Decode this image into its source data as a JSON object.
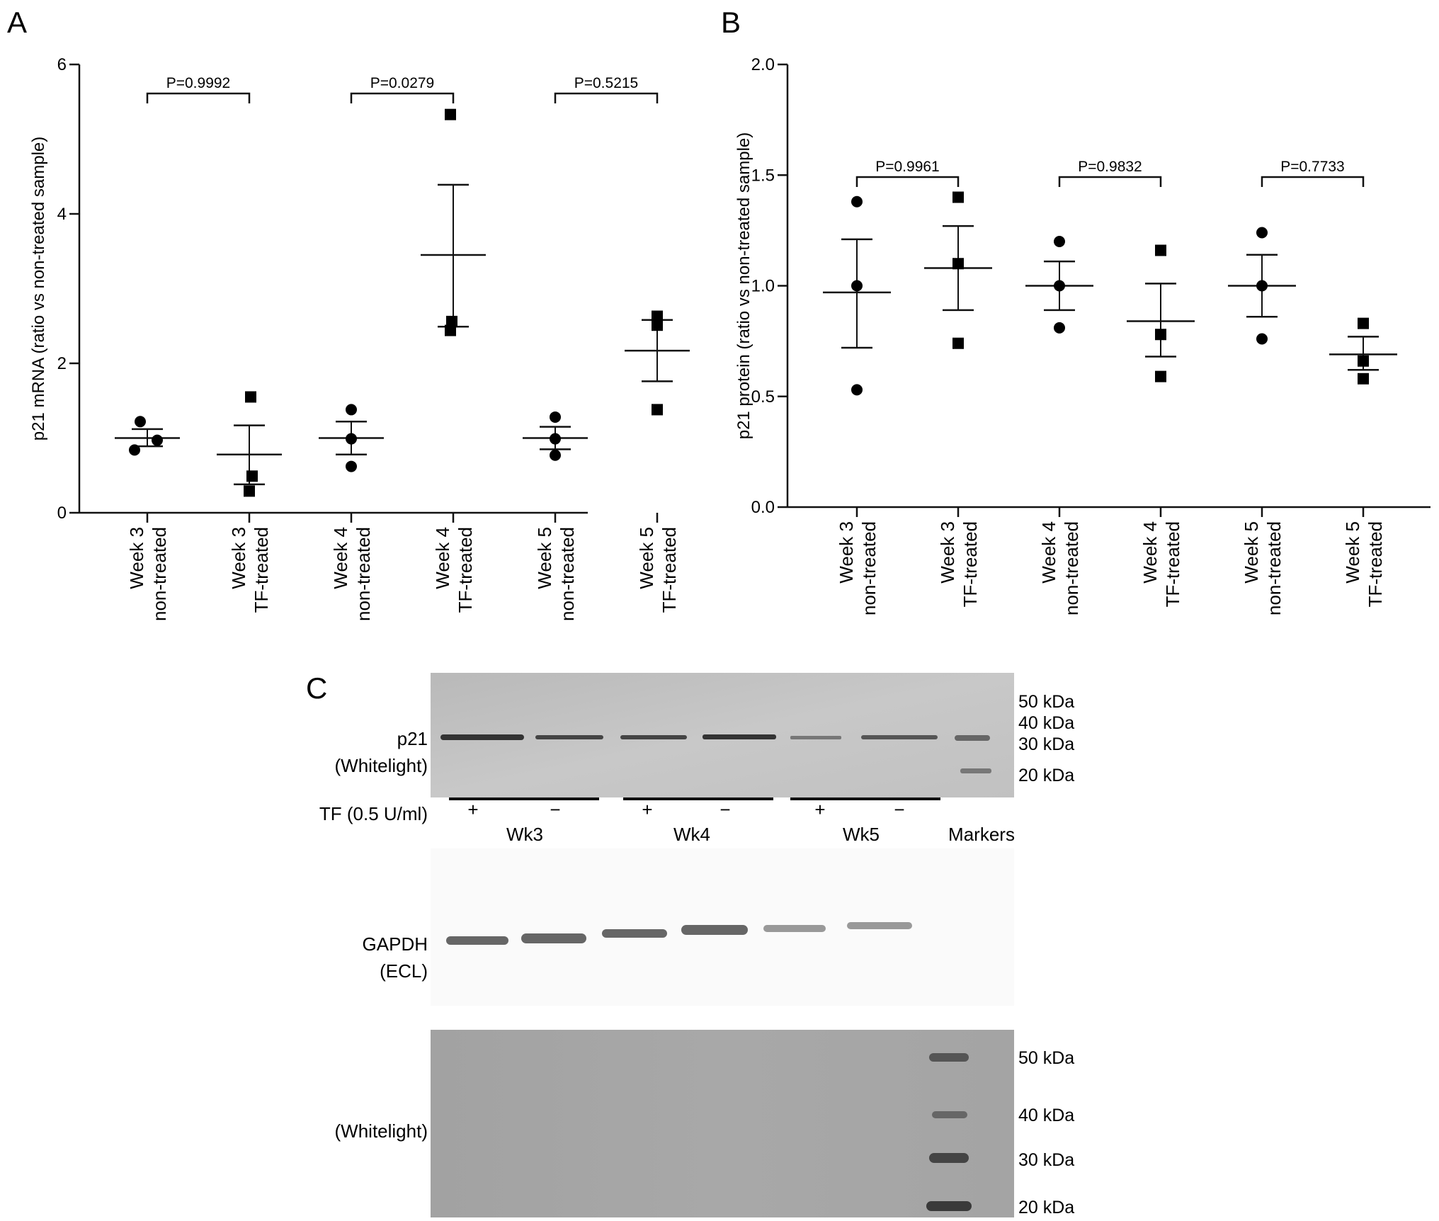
{
  "panels": {
    "a": "A",
    "b": "B",
    "c": "C"
  },
  "chart_data": [
    {
      "panel": "A",
      "type": "scatter",
      "ylabel": "p21 mRNA (ratio vs non-treated sample)",
      "ylim": [
        0,
        6
      ],
      "yticks": [
        "0",
        "2",
        "4",
        "6"
      ],
      "grid": false,
      "categories": [
        {
          "line1": "Week 3",
          "line2": "non-treated",
          "marker": "circle"
        },
        {
          "line1": "Week 3",
          "line2": "TF-treated",
          "marker": "square"
        },
        {
          "line1": "Week 4",
          "line2": "non-treated",
          "marker": "circle"
        },
        {
          "line1": "Week 4",
          "line2": "TF-treated",
          "marker": "square"
        },
        {
          "line1": "Week 5",
          "line2": "non-treated",
          "marker": "circle"
        },
        {
          "line1": "Week 5",
          "line2": "TF-treated",
          "marker": "square"
        }
      ],
      "groups": [
        {
          "points": [
            1.22,
            0.84,
            0.97
          ],
          "mean": 1.0,
          "sem_low": 0.89,
          "sem_high": 1.12
        },
        {
          "points": [
            1.55,
            0.49,
            0.29
          ],
          "mean": 0.78,
          "sem_low": 0.38,
          "sem_high": 1.17
        },
        {
          "points": [
            1.38,
            0.99,
            0.62
          ],
          "mean": 1.0,
          "sem_low": 0.78,
          "sem_high": 1.22
        },
        {
          "points": [
            5.33,
            2.56,
            2.44
          ],
          "mean": 3.45,
          "sem_low": 2.49,
          "sem_high": 4.39
        },
        {
          "points": [
            1.28,
            0.99,
            0.77
          ],
          "mean": 1.0,
          "sem_low": 0.85,
          "sem_high": 1.15
        },
        {
          "points": [
            2.63,
            2.51,
            1.38
          ],
          "mean": 2.17,
          "sem_low": 1.76,
          "sem_high": 2.58
        }
      ],
      "comparisons": [
        {
          "from": 0,
          "to": 1,
          "label": "P=0.9992"
        },
        {
          "from": 2,
          "to": 3,
          "label": "P=0.0279"
        },
        {
          "from": 4,
          "to": 5,
          "label": "P=0.5215"
        }
      ]
    },
    {
      "panel": "B",
      "type": "scatter",
      "ylabel": "p21 protein (ratio vs non-treated sample)",
      "ylim": [
        0,
        2
      ],
      "yticks": [
        "0.0",
        "0.5",
        "1.0",
        "1.5",
        "2.0"
      ],
      "grid": false,
      "categories": [
        {
          "line1": "Week 3",
          "line2": "non-treated",
          "marker": "circle"
        },
        {
          "line1": "Week 3",
          "line2": "TF-treated",
          "marker": "square"
        },
        {
          "line1": "Week 4",
          "line2": "non-treated",
          "marker": "circle"
        },
        {
          "line1": "Week 4",
          "line2": "TF-treated",
          "marker": "square"
        },
        {
          "line1": "Week 5",
          "line2": "non-treated",
          "marker": "circle"
        },
        {
          "line1": "Week 5",
          "line2": "TF-treated",
          "marker": "square"
        }
      ],
      "groups": [
        {
          "points": [
            1.38,
            1.0,
            0.53
          ],
          "mean": 0.97,
          "sem_low": 0.72,
          "sem_high": 1.21
        },
        {
          "points": [
            1.4,
            1.1,
            0.74
          ],
          "mean": 1.08,
          "sem_low": 0.89,
          "sem_high": 1.27
        },
        {
          "points": [
            1.2,
            1.0,
            0.81
          ],
          "mean": 1.0,
          "sem_low": 0.89,
          "sem_high": 1.11
        },
        {
          "points": [
            1.16,
            0.78,
            0.59
          ],
          "mean": 0.84,
          "sem_low": 0.68,
          "sem_high": 1.01
        },
        {
          "points": [
            1.24,
            1.0,
            0.76
          ],
          "mean": 1.0,
          "sem_low": 0.86,
          "sem_high": 1.14
        },
        {
          "points": [
            0.83,
            0.66,
            0.58
          ],
          "mean": 0.69,
          "sem_low": 0.62,
          "sem_high": 0.77
        }
      ],
      "comparisons": [
        {
          "from": 0,
          "to": 1,
          "label": "P=0.9961"
        },
        {
          "from": 2,
          "to": 3,
          "label": "P=0.9832"
        },
        {
          "from": 4,
          "to": 5,
          "label": "P=0.7733"
        }
      ]
    }
  ],
  "blot": {
    "p21_label": [
      "p21",
      "(Whitelight)"
    ],
    "gapdh_label": [
      "GAPDH",
      "(ECL)"
    ],
    "bottom_label": "(Whitelight)",
    "tf_label": "TF (0.5 U/ml)",
    "tf_signs": [
      "+",
      "−",
      "+",
      "−",
      "+",
      "−"
    ],
    "weeks": [
      "Wk3",
      "Wk4",
      "Wk5"
    ],
    "markers_label": "Markers",
    "top_kda": [
      "50 kDa",
      "40 kDa",
      "30 kDa",
      "20 kDa"
    ],
    "bottom_kda": [
      "50 kDa",
      "40 kDa",
      "30 kDa",
      "20 kDa"
    ]
  }
}
